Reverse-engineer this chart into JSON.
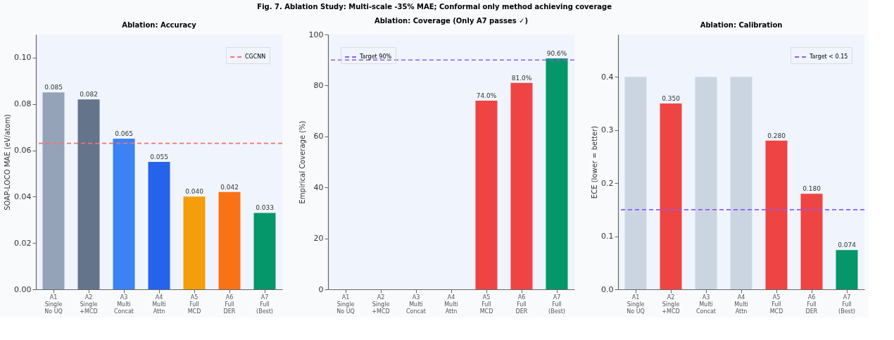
{
  "chart_data": [
    {
      "type": "bar",
      "title": "Ablation: Accuracy",
      "ylabel": "SOAP-LOCO MAE (eV/atom)",
      "annotations": [
        "Fig. 7. Ablation Study: Multi-scale -35% MAE; Conformal only method achieving coverage"
      ],
      "categories": [
        "A1\nSingle\nNo UQ",
        "A2\nSingle\n+MCD",
        "A3\nMulti\nConcat",
        "A4\nMulti\nAttn",
        "A5\nFull\nMCD",
        "A6\nFull\nDER",
        "A7\nFull\n(Best)"
      ],
      "values": [
        0.085,
        0.082,
        0.065,
        0.055,
        0.04,
        0.042,
        0.033
      ],
      "colors": [
        "#94a3b8",
        "#64748b",
        "#3b82f6",
        "#2563eb",
        "#f59e0b",
        "#f97316",
        "#059669"
      ],
      "value_labels": [
        "0.085",
        "0.082",
        "0.065",
        "0.055",
        "0.040",
        "0.042",
        "0.033"
      ],
      "ylim": [
        0,
        0.11
      ],
      "yticks": [
        {
          "value": 0,
          "label": "0.00"
        },
        {
          "value": 0.02,
          "label": "0.02"
        },
        {
          "value": 0.04,
          "label": "0.04"
        },
        {
          "value": 0.06,
          "label": "0.06"
        },
        {
          "value": 0.08,
          "label": "0.08"
        },
        {
          "value": 0.1,
          "label": "0.10"
        }
      ],
      "ref_lines": [
        {
          "axis": "y",
          "value": 0.063,
          "label": "CGCNN",
          "color": "#f87171",
          "line_style": "dashed"
        }
      ],
      "legend": "top right",
      "grid": false
    },
    {
      "type": "bar",
      "title": "Ablation: Coverage (Only A7 passes ✓)",
      "ylabel": "Empirical Coverage (%)",
      "categories": [
        "A1\nSingle\nNo UQ",
        "A2\nSingle\n+MCD",
        "A3\nMulti\nConcat",
        "A4\nMulti\nAttn",
        "A5\nFull\nMCD",
        "A6\nFull\nDER",
        "A7\nFull\n(Best)"
      ],
      "values": [
        null,
        null,
        null,
        null,
        74.0,
        81.0,
        90.6
      ],
      "colors": [
        "#ef4444",
        "#ef4444",
        "#ef4444",
        "#ef4444",
        "#ef4444",
        "#ef4444",
        "#059669"
      ],
      "value_labels": [
        null,
        null,
        null,
        null,
        "74.0%",
        "81.0%",
        "90.6%"
      ],
      "ylim": [
        0,
        100
      ],
      "yticks": [
        0,
        20,
        40,
        60,
        80,
        100
      ],
      "ref_lines": [
        {
          "axis": "y",
          "value": 90,
          "label": "Target 90%",
          "color": "#8b5cf6",
          "line_style": "dashed"
        }
      ],
      "legend": "top left",
      "grid": false
    },
    {
      "type": "bar",
      "title": "Ablation: Calibration",
      "ylabel": "ECE (lower = better)",
      "categories": [
        "A1\nSingle\nNo UQ",
        "A2\nSingle\n+MCD",
        "A3\nMulti\nConcat",
        "A4\nMulti\nAttn",
        "A5\nFull\nMCD",
        "A6\nFull\nDER",
        "A7\nFull\n(Best)"
      ],
      "values": [
        0.4,
        0.35,
        0.4,
        0.4,
        0.28,
        0.18,
        0.074
      ],
      "colors": [
        "#cbd5e1",
        "#ef4444",
        "#cbd5e1",
        "#cbd5e1",
        "#ef4444",
        "#ef4444",
        "#059669"
      ],
      "value_labels": [
        null,
        "0.350",
        null,
        null,
        "0.280",
        "0.180",
        "0.074"
      ],
      "ylim": [
        0,
        0.48
      ],
      "yticks": [
        {
          "value": 0,
          "label": "0.0"
        },
        {
          "value": 0.1,
          "label": "0.1"
        },
        {
          "value": 0.2,
          "label": "0.2"
        },
        {
          "value": 0.3,
          "label": "0.3"
        },
        {
          "value": 0.4,
          "label": "0.4"
        }
      ],
      "ref_lines": [
        {
          "axis": "y",
          "value": 0.15,
          "label": "Target < 0.15",
          "color": "#8b5cf6",
          "line_style": "dashed"
        }
      ],
      "legend": "top right",
      "grid": false
    }
  ]
}
